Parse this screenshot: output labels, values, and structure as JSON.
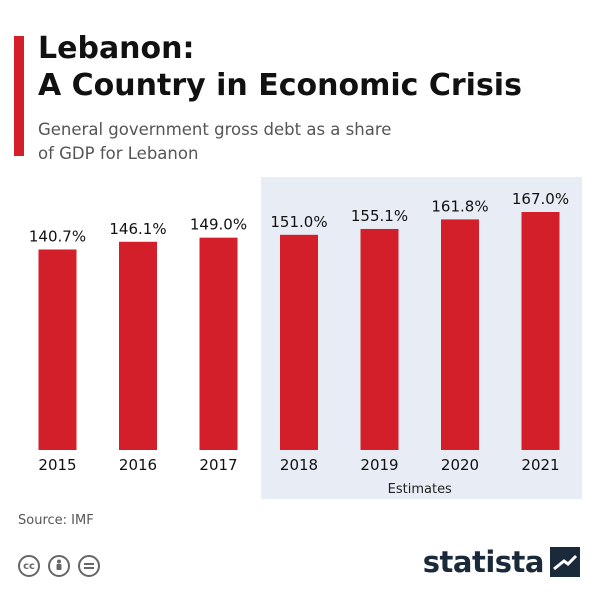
{
  "header": {
    "title_line1": "Lebanon:",
    "title_line2": "A Country in Economic Crisis",
    "subtitle_line1": "General government gross debt as a share",
    "subtitle_line2": "of GDP for Lebanon"
  },
  "footer": {
    "source": "Source: IMF",
    "brand": "statista",
    "license_icons": [
      "cc-icon",
      "by-person-icon",
      "nd-equals-icon"
    ]
  },
  "colors": {
    "accent": "#d21f2a",
    "bar": "#d21f2a",
    "estimate_band": "#e8ecf5",
    "brand_dark": "#1b2a3a"
  },
  "chart_data": {
    "type": "bar",
    "categories": [
      "2015",
      "2016",
      "2017",
      "2018",
      "2019",
      "2020",
      "2021"
    ],
    "values": [
      140.7,
      146.1,
      149.0,
      151.0,
      155.1,
      161.8,
      167.0
    ],
    "value_labels": [
      "140.7%",
      "146.1%",
      "149.0%",
      "151.0%",
      "155.1%",
      "161.8%",
      "167.0%"
    ],
    "estimate_categories": [
      "2018",
      "2019",
      "2020",
      "2021"
    ],
    "estimate_label": "Estimates",
    "ylim": [
      0,
      170
    ],
    "grid": false,
    "legend": "none"
  }
}
